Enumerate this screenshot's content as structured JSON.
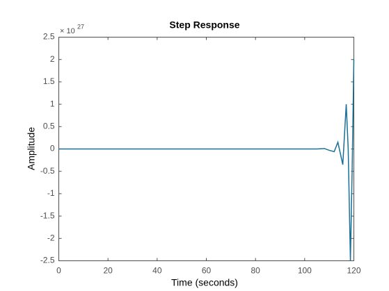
{
  "chart_data": {
    "type": "line",
    "title": "Step Response",
    "x_label": "Time (seconds)",
    "y_label": "Amplitude",
    "y_scale_label": "× 10",
    "y_scale_exponent": "27",
    "x": [
      0,
      20,
      40,
      60,
      80,
      100,
      105,
      108,
      110,
      112,
      113.5,
      115.5,
      116.9,
      117.7,
      118.6,
      119.3,
      120
    ],
    "series": [
      {
        "name": "Step Response",
        "color": "#1a6f99",
        "values": [
          0,
          0,
          0,
          0,
          0,
          0,
          0,
          0.01,
          -0.03,
          -0.06,
          0.15,
          -0.35,
          1.0,
          0.0,
          -2.5,
          -0.5,
          2.0
        ]
      }
    ],
    "xlim": [
      0,
      120
    ],
    "xticks": [
      0,
      20,
      40,
      60,
      80,
      100,
      120
    ],
    "ylim": [
      -2.5,
      2.5
    ],
    "yticks": [
      -2.5,
      -2,
      -1.5,
      -1,
      -0.5,
      0,
      0.5,
      1,
      1.5,
      2,
      2.5
    ]
  }
}
